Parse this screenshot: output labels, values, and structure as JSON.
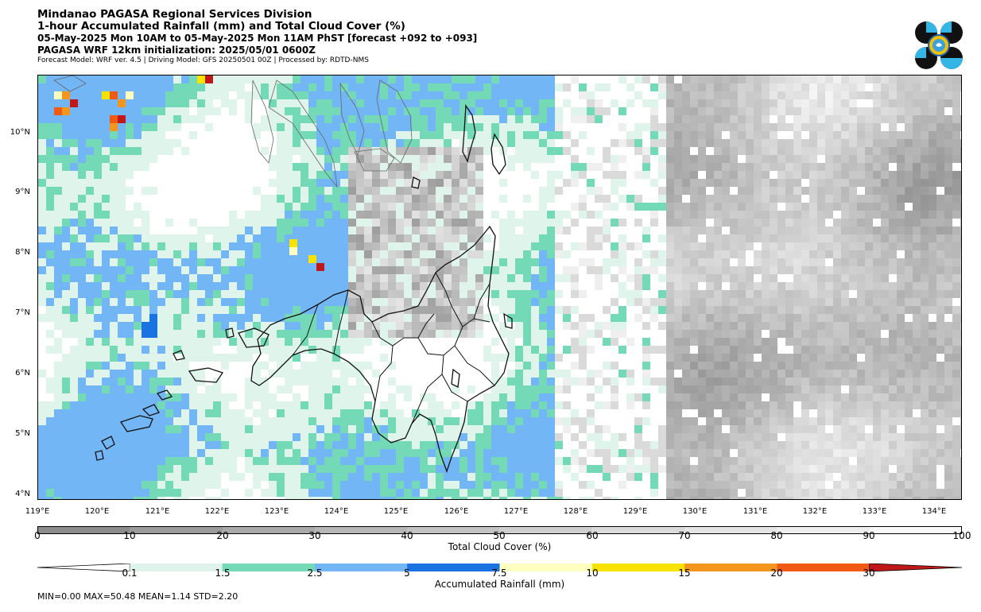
{
  "header": {
    "title1": "Mindanao PAGASA Regional Services Division",
    "title2": "1-hour Accumulated Rainfall (mm) and Total Cloud Cover (%)",
    "title3": "05-May-2025 Mon 10AM to 05-May-2025 Mon 11AM PhST [forecast +092 to +093]",
    "title4": "PAGASA WRF 12km initialization: 2025/05/01 0600Z",
    "title5": "Forecast Model: WRF ver. 4.5 | Driving Model: GFS 20250501 00Z | Processed by: RDTD-NMS"
  },
  "logo": {
    "icon": "pagasa-logo-icon"
  },
  "map": {
    "lat_ticks": [
      "10°N",
      "9°N",
      "8°N",
      "7°N",
      "6°N",
      "5°N",
      "4°N"
    ],
    "lon_ticks": [
      "119°E",
      "120°E",
      "121°E",
      "122°E",
      "123°E",
      "124°E",
      "125°E",
      "126°E",
      "127°E",
      "128°E",
      "129°E",
      "130°E",
      "131°E",
      "132°E",
      "133°E",
      "134°E"
    ],
    "lon_range": [
      119,
      134.5
    ],
    "lat_range": [
      3.9,
      11.0
    ]
  },
  "cloud_colorbar": {
    "label": "Total Cloud Cover (%)",
    "ticks": [
      "0",
      "10",
      "20",
      "30",
      "40",
      "50",
      "60",
      "70",
      "80",
      "90",
      "100"
    ],
    "colors": [
      "#8c8c8c",
      "#9b9b9b",
      "#a9a9a9",
      "#b6b6b6",
      "#c3c3c3",
      "#cfcfcf",
      "#dadada",
      "#e4e4e4",
      "#eeeeee",
      "#f8f8f8"
    ]
  },
  "rain_colorbar": {
    "label": "Accumulated Rainfall (mm)",
    "ticks": [
      "0.1",
      "1.5",
      "2.5",
      "5",
      "7.5",
      "10",
      "15",
      "20",
      "30"
    ],
    "colors": [
      "#ffffff",
      "#dff5ec",
      "#74d9b7",
      "#73b6f5",
      "#1a73e0",
      "#ffffc0",
      "#f8e300",
      "#f4951e",
      "#f05a12",
      "#c01818"
    ]
  },
  "stats": {
    "text": "MIN=0.00   MAX=50.48   MEAN=1.14   STD=2.20"
  }
}
